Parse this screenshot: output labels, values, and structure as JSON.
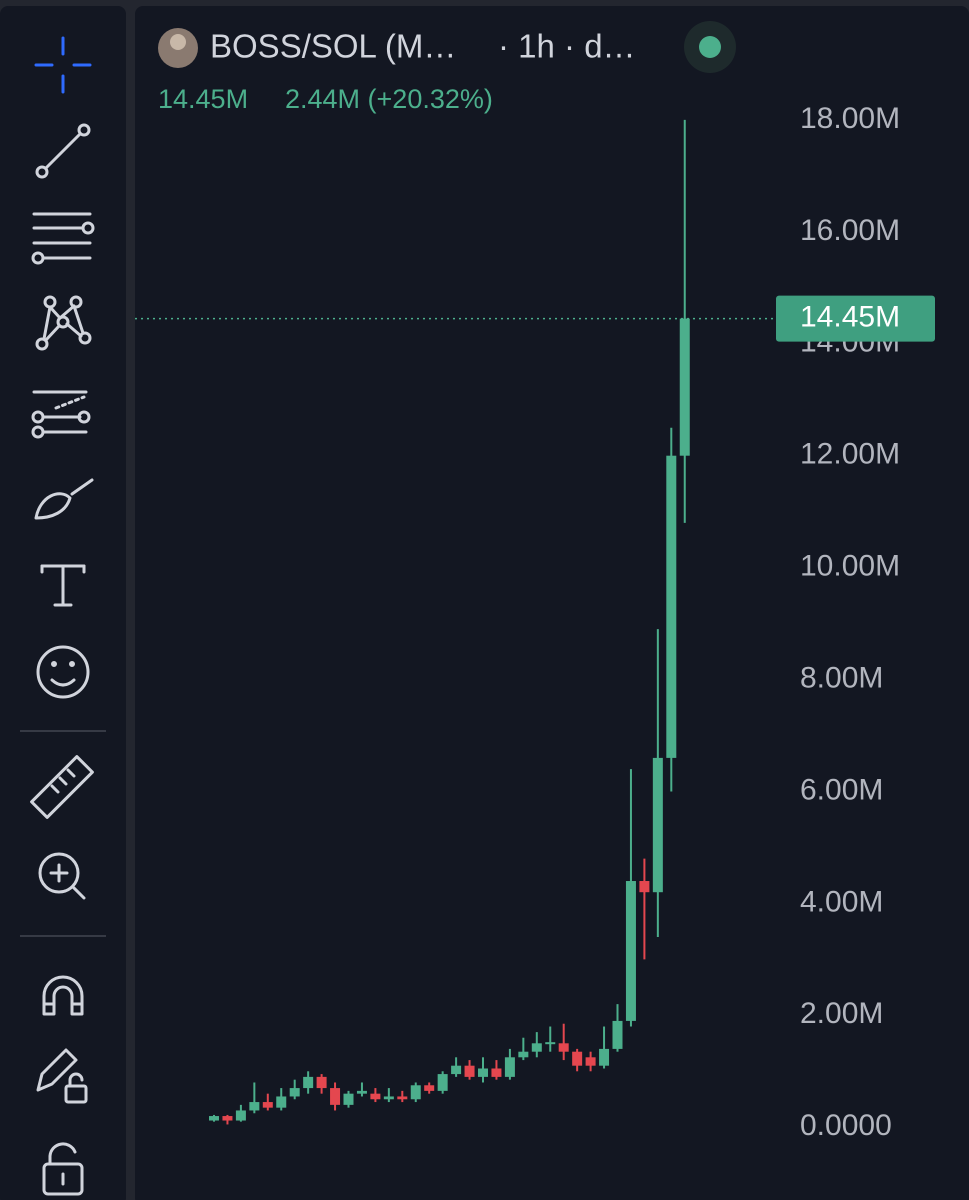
{
  "header": {
    "symbol": "BOSS/SOL (M…",
    "interval": "· 1h · d…",
    "price": "14.45M",
    "change": "2.44M (+20.32%)"
  },
  "chart_data": {
    "type": "candlestick",
    "up_color": "#4caf8c",
    "down_color": "#e4474f",
    "open": [
      120000,
      200000,
      120000,
      300000,
      450000,
      350000,
      550000,
      700000,
      900000,
      700000,
      400000,
      600000,
      600000,
      500000,
      550000,
      500000,
      750000,
      650000,
      950000,
      1100000,
      900000,
      1050000,
      900000,
      1250000,
      1350000,
      1500000,
      1500000,
      1350000,
      1250000,
      1100000,
      1400000,
      1900000,
      4400000,
      4200000,
      6600000,
      12000000
    ],
    "high": [
      220000,
      220000,
      400000,
      800000,
      600000,
      700000,
      850000,
      1000000,
      950000,
      800000,
      650000,
      800000,
      700000,
      700000,
      650000,
      800000,
      800000,
      1000000,
      1250000,
      1200000,
      1250000,
      1200000,
      1400000,
      1600000,
      1700000,
      1800000,
      1850000,
      1400000,
      1350000,
      1800000,
      2200000,
      6400000,
      4800000,
      8900000,
      12500000,
      18000000
    ],
    "low": [
      100000,
      50000,
      100000,
      250000,
      300000,
      300000,
      500000,
      600000,
      600000,
      300000,
      350000,
      550000,
      450000,
      450000,
      450000,
      450000,
      600000,
      600000,
      900000,
      850000,
      800000,
      850000,
      850000,
      1200000,
      1250000,
      1350000,
      1200000,
      1000000,
      1000000,
      1050000,
      1350000,
      1800000,
      3000000,
      3400000,
      6000000,
      10800000
    ],
    "close": [
      200000,
      120000,
      300000,
      450000,
      350000,
      550000,
      700000,
      900000,
      700000,
      400000,
      600000,
      650000,
      500000,
      550000,
      500000,
      750000,
      650000,
      950000,
      1100000,
      900000,
      1050000,
      900000,
      1250000,
      1350000,
      1500000,
      1520000,
      1350000,
      1100000,
      1100000,
      1400000,
      1900000,
      4400000,
      4200000,
      6600000,
      12000000,
      14450000
    ],
    "ylim": [
      -1300000,
      20000000
    ],
    "yticks": [
      {
        "value": 0,
        "label": "0.0000"
      },
      {
        "value": 2000000,
        "label": "2.00M"
      },
      {
        "value": 4000000,
        "label": "4.00M"
      },
      {
        "value": 6000000,
        "label": "6.00M"
      },
      {
        "value": 8000000,
        "label": "8.00M"
      },
      {
        "value": 10000000,
        "label": "10.00M"
      },
      {
        "value": 12000000,
        "label": "12.00M"
      },
      {
        "value": 14000000,
        "label": "14.00M"
      },
      {
        "value": 16000000,
        "label": "16.00M"
      },
      {
        "value": 18000000,
        "label": "18.00M"
      }
    ],
    "last_price": {
      "value": 14450000,
      "label": "14.45M"
    }
  }
}
